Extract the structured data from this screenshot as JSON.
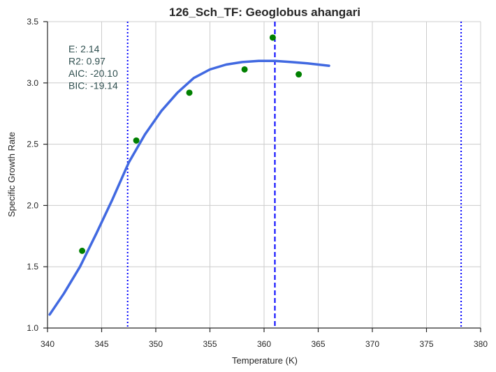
{
  "chart_data": {
    "type": "scatter",
    "title": "126_Sch_TF: Geoglobus ahangari",
    "xlabel": "Temperature (K)",
    "ylabel": "Specific Growth Rate",
    "xlim": [
      340,
      380
    ],
    "ylim": [
      1.0,
      3.5
    ],
    "xticks": [
      340,
      345,
      350,
      355,
      360,
      365,
      370,
      375,
      380
    ],
    "yticks": [
      1.0,
      1.5,
      2.0,
      2.5,
      3.0,
      3.5
    ],
    "xtick_labels": [
      "340",
      "345",
      "350",
      "355",
      "360",
      "365",
      "370",
      "375",
      "380"
    ],
    "ytick_labels": [
      "1.0",
      "1.5",
      "2.0",
      "2.5",
      "3.0",
      "3.5"
    ],
    "grid": true,
    "points": [
      {
        "x": 343.2,
        "y": 1.63
      },
      {
        "x": 348.2,
        "y": 2.53
      },
      {
        "x": 353.1,
        "y": 2.92
      },
      {
        "x": 358.2,
        "y": 3.11
      },
      {
        "x": 360.8,
        "y": 3.37
      },
      {
        "x": 363.2,
        "y": 3.07
      }
    ],
    "fit_curve": {
      "x": [
        340.2,
        341.5,
        343.0,
        344.5,
        346.0,
        347.5,
        349.0,
        350.5,
        352.0,
        353.5,
        355.0,
        356.5,
        358.0,
        359.5,
        361.0,
        362.5,
        364.0,
        366.0
      ],
      "y": [
        1.11,
        1.28,
        1.5,
        1.77,
        2.05,
        2.35,
        2.58,
        2.77,
        2.92,
        3.04,
        3.11,
        3.15,
        3.17,
        3.18,
        3.18,
        3.17,
        3.16,
        3.14
      ]
    },
    "vlines": [
      {
        "x": 361.0,
        "style": "dashed"
      },
      {
        "x": 347.4,
        "style": "dotted"
      },
      {
        "x": 378.2,
        "style": "dotted"
      }
    ],
    "stats_lines": [
      "E:  2.14",
      "R2:  0.97",
      "AIC: -20.10",
      "BIC: -19.14"
    ],
    "colors": {
      "points": "#008000",
      "curve": "#4169e1",
      "vlines": "#0000ff",
      "grid": "#cccccc",
      "axes": "#262626",
      "stats_text": "#2f4f4f"
    }
  }
}
